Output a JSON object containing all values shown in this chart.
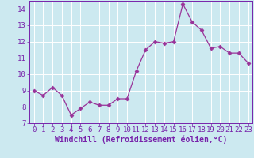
{
  "x": [
    0,
    1,
    2,
    3,
    4,
    5,
    6,
    7,
    8,
    9,
    10,
    11,
    12,
    13,
    14,
    15,
    16,
    17,
    18,
    19,
    20,
    21,
    22,
    23
  ],
  "y": [
    9.0,
    8.7,
    9.2,
    8.7,
    7.5,
    7.9,
    8.3,
    8.1,
    8.1,
    8.5,
    8.5,
    10.2,
    11.5,
    12.0,
    11.9,
    12.0,
    14.3,
    13.2,
    12.7,
    11.6,
    11.7,
    11.3,
    11.3,
    10.7
  ],
  "line_color": "#993399",
  "marker": "D",
  "markersize": 2.5,
  "linewidth": 0.9,
  "xlabel": "Windchill (Refroidissement éolien,°C)",
  "xlabel_fontsize": 7,
  "ylim": [
    7,
    14.5
  ],
  "xlim": [
    -0.5,
    23.5
  ],
  "yticks": [
    7,
    8,
    9,
    10,
    11,
    12,
    13,
    14
  ],
  "xticks": [
    0,
    1,
    2,
    3,
    4,
    5,
    6,
    7,
    8,
    9,
    10,
    11,
    12,
    13,
    14,
    15,
    16,
    17,
    18,
    19,
    20,
    21,
    22,
    23
  ],
  "tick_fontsize": 6.5,
  "bg_color": "#cce9f0",
  "grid_color": "#ffffff",
  "line_edge_color": "#7722aa",
  "spine_color": "#7722aa"
}
